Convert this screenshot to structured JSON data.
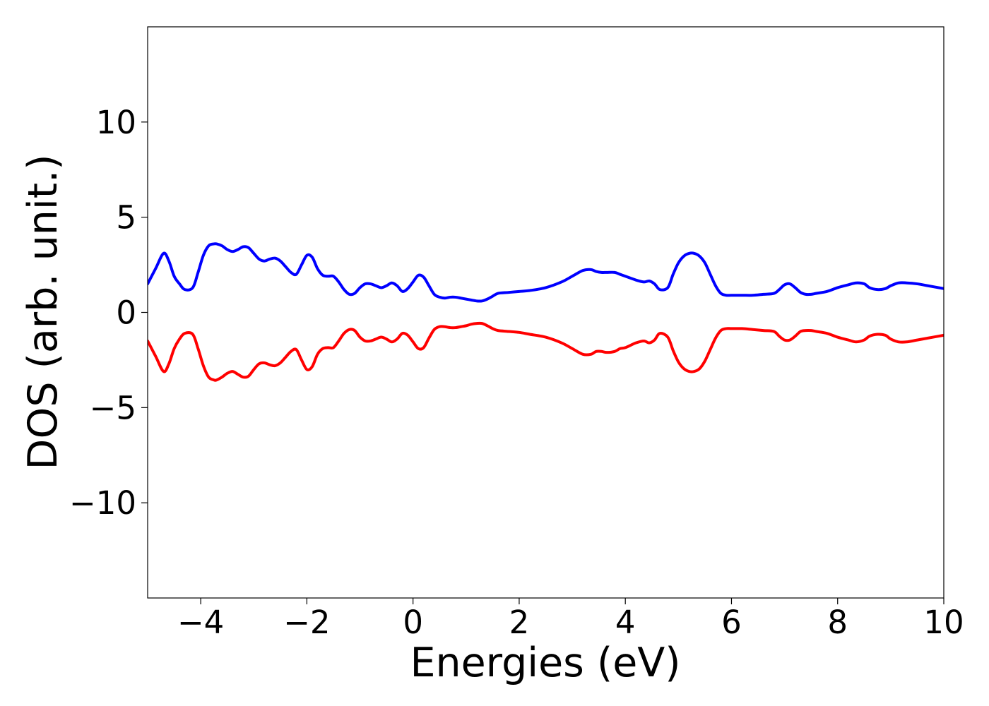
{
  "chart_data": {
    "type": "line",
    "title": "",
    "xlabel": "Energies (eV)",
    "ylabel": "DOS (arb. unit.)",
    "xlim": [
      -5,
      10
    ],
    "ylim": [
      -15,
      15
    ],
    "xticks": [
      -4,
      -2,
      0,
      2,
      4,
      6,
      8,
      10
    ],
    "xtick_labels": [
      "−4",
      "−2",
      "0",
      "2",
      "4",
      "6",
      "8",
      "10"
    ],
    "yticks": [
      -10,
      -5,
      0,
      5,
      10
    ],
    "ytick_labels": [
      "−10",
      "−5",
      "0",
      "5",
      "10"
    ],
    "grid": false,
    "legend": "none",
    "series": [
      {
        "color": "#0000ff",
        "x": [
          -5.0,
          -4.85,
          -4.7,
          -4.6,
          -4.5,
          -4.4,
          -4.3,
          -4.15,
          -4.05,
          -3.95,
          -3.85,
          -3.75,
          -3.7,
          -3.6,
          -3.5,
          -3.4,
          -3.3,
          -3.2,
          -3.1,
          -3.0,
          -2.9,
          -2.8,
          -2.7,
          -2.6,
          -2.5,
          -2.4,
          -2.3,
          -2.2,
          -2.1,
          -2.0,
          -1.9,
          -1.8,
          -1.7,
          -1.6,
          -1.5,
          -1.4,
          -1.3,
          -1.2,
          -1.1,
          -1.0,
          -0.9,
          -0.8,
          -0.7,
          -0.6,
          -0.5,
          -0.4,
          -0.3,
          -0.2,
          -0.1,
          0.0,
          0.1,
          0.2,
          0.3,
          0.4,
          0.5,
          0.6,
          0.7,
          0.8,
          0.9,
          1.0,
          1.1,
          1.2,
          1.3,
          1.4,
          1.5,
          1.6,
          1.8,
          2.0,
          2.2,
          2.5,
          2.8,
          3.0,
          3.2,
          3.35,
          3.45,
          3.55,
          3.65,
          3.8,
          3.9,
          4.0,
          4.2,
          4.35,
          4.45,
          4.55,
          4.65,
          4.8,
          4.9,
          5.0,
          5.1,
          5.2,
          5.3,
          5.4,
          5.5,
          5.6,
          5.7,
          5.8,
          5.9,
          6.0,
          6.2,
          6.4,
          6.6,
          6.8,
          6.9,
          7.0,
          7.1,
          7.2,
          7.3,
          7.4,
          7.5,
          7.6,
          7.8,
          8.0,
          8.2,
          8.35,
          8.5,
          8.6,
          8.75,
          8.9,
          9.0,
          9.15,
          9.3,
          9.5,
          9.7,
          9.9,
          10.0
        ],
        "y": [
          1.5,
          2.3,
          3.1,
          2.7,
          1.9,
          1.5,
          1.2,
          1.3,
          2.1,
          3.0,
          3.5,
          3.6,
          3.6,
          3.5,
          3.3,
          3.2,
          3.3,
          3.45,
          3.4,
          3.1,
          2.8,
          2.7,
          2.8,
          2.85,
          2.7,
          2.4,
          2.1,
          2.0,
          2.5,
          3.0,
          2.9,
          2.3,
          1.95,
          1.9,
          1.9,
          1.6,
          1.2,
          0.95,
          1.0,
          1.3,
          1.5,
          1.5,
          1.4,
          1.3,
          1.4,
          1.55,
          1.4,
          1.1,
          1.25,
          1.6,
          1.95,
          1.85,
          1.4,
          0.95,
          0.8,
          0.75,
          0.8,
          0.8,
          0.75,
          0.7,
          0.65,
          0.6,
          0.6,
          0.7,
          0.85,
          1.0,
          1.05,
          1.1,
          1.15,
          1.3,
          1.6,
          1.9,
          2.2,
          2.25,
          2.15,
          2.1,
          2.1,
          2.1,
          2.0,
          1.9,
          1.7,
          1.6,
          1.65,
          1.5,
          1.2,
          1.3,
          2.0,
          2.6,
          2.95,
          3.1,
          3.1,
          2.95,
          2.6,
          2.0,
          1.4,
          1.0,
          0.9,
          0.9,
          0.9,
          0.9,
          0.95,
          1.0,
          1.2,
          1.45,
          1.5,
          1.3,
          1.05,
          0.95,
          0.95,
          1.0,
          1.1,
          1.3,
          1.45,
          1.55,
          1.5,
          1.3,
          1.2,
          1.25,
          1.4,
          1.55,
          1.55,
          1.5,
          1.4,
          1.3,
          1.25
        ],
        "mirror": false
      },
      {
        "color": "#ff0000",
        "x": [
          -5.0,
          -4.85,
          -4.7,
          -4.6,
          -4.5,
          -4.4,
          -4.3,
          -4.15,
          -4.05,
          -3.95,
          -3.85,
          -3.75,
          -3.7,
          -3.6,
          -3.5,
          -3.4,
          -3.3,
          -3.2,
          -3.1,
          -3.0,
          -2.9,
          -2.8,
          -2.7,
          -2.6,
          -2.5,
          -2.4,
          -2.3,
          -2.2,
          -2.1,
          -2.0,
          -1.9,
          -1.8,
          -1.7,
          -1.6,
          -1.5,
          -1.4,
          -1.3,
          -1.2,
          -1.1,
          -1.0,
          -0.9,
          -0.8,
          -0.7,
          -0.6,
          -0.5,
          -0.4,
          -0.3,
          -0.2,
          -0.1,
          0.0,
          0.1,
          0.2,
          0.3,
          0.4,
          0.5,
          0.6,
          0.7,
          0.8,
          0.9,
          1.0,
          1.1,
          1.2,
          1.3,
          1.4,
          1.5,
          1.6,
          1.8,
          2.0,
          2.2,
          2.5,
          2.8,
          3.0,
          3.2,
          3.35,
          3.45,
          3.55,
          3.65,
          3.8,
          3.9,
          4.0,
          4.2,
          4.35,
          4.45,
          4.55,
          4.65,
          4.8,
          4.9,
          5.0,
          5.1,
          5.2,
          5.3,
          5.4,
          5.5,
          5.6,
          5.7,
          5.8,
          5.9,
          6.0,
          6.2,
          6.4,
          6.6,
          6.8,
          6.9,
          7.0,
          7.1,
          7.2,
          7.3,
          7.4,
          7.5,
          7.6,
          7.8,
          8.0,
          8.2,
          8.35,
          8.5,
          8.6,
          8.75,
          8.9,
          9.0,
          9.15,
          9.3,
          9.5,
          9.7,
          9.9,
          10.0
        ],
        "y": [
          -1.5,
          -2.3,
          -3.1,
          -2.7,
          -1.9,
          -1.4,
          -1.1,
          -1.15,
          -1.9,
          -2.8,
          -3.4,
          -3.55,
          -3.55,
          -3.4,
          -3.2,
          -3.1,
          -3.25,
          -3.4,
          -3.35,
          -3.0,
          -2.7,
          -2.65,
          -2.75,
          -2.8,
          -2.65,
          -2.35,
          -2.05,
          -1.95,
          -2.5,
          -3.0,
          -2.85,
          -2.2,
          -1.9,
          -1.85,
          -1.85,
          -1.5,
          -1.1,
          -0.9,
          -0.95,
          -1.3,
          -1.5,
          -1.5,
          -1.4,
          -1.3,
          -1.4,
          -1.55,
          -1.4,
          -1.1,
          -1.2,
          -1.55,
          -1.9,
          -1.85,
          -1.35,
          -0.9,
          -0.75,
          -0.75,
          -0.8,
          -0.8,
          -0.75,
          -0.7,
          -0.62,
          -0.58,
          -0.58,
          -0.7,
          -0.85,
          -0.95,
          -1.0,
          -1.05,
          -1.15,
          -1.3,
          -1.6,
          -1.9,
          -2.2,
          -2.2,
          -2.05,
          -2.05,
          -2.1,
          -2.05,
          -1.9,
          -1.85,
          -1.6,
          -1.5,
          -1.6,
          -1.45,
          -1.1,
          -1.3,
          -2.0,
          -2.6,
          -2.95,
          -3.1,
          -3.1,
          -2.95,
          -2.55,
          -1.95,
          -1.35,
          -0.95,
          -0.85,
          -0.85,
          -0.85,
          -0.9,
          -0.95,
          -1.0,
          -1.25,
          -1.45,
          -1.45,
          -1.25,
          -1.0,
          -0.95,
          -0.95,
          -1.0,
          -1.1,
          -1.3,
          -1.45,
          -1.55,
          -1.45,
          -1.25,
          -1.15,
          -1.2,
          -1.4,
          -1.55,
          -1.55,
          -1.45,
          -1.35,
          -1.25,
          -1.2
        ],
        "mirror": false
      }
    ]
  }
}
